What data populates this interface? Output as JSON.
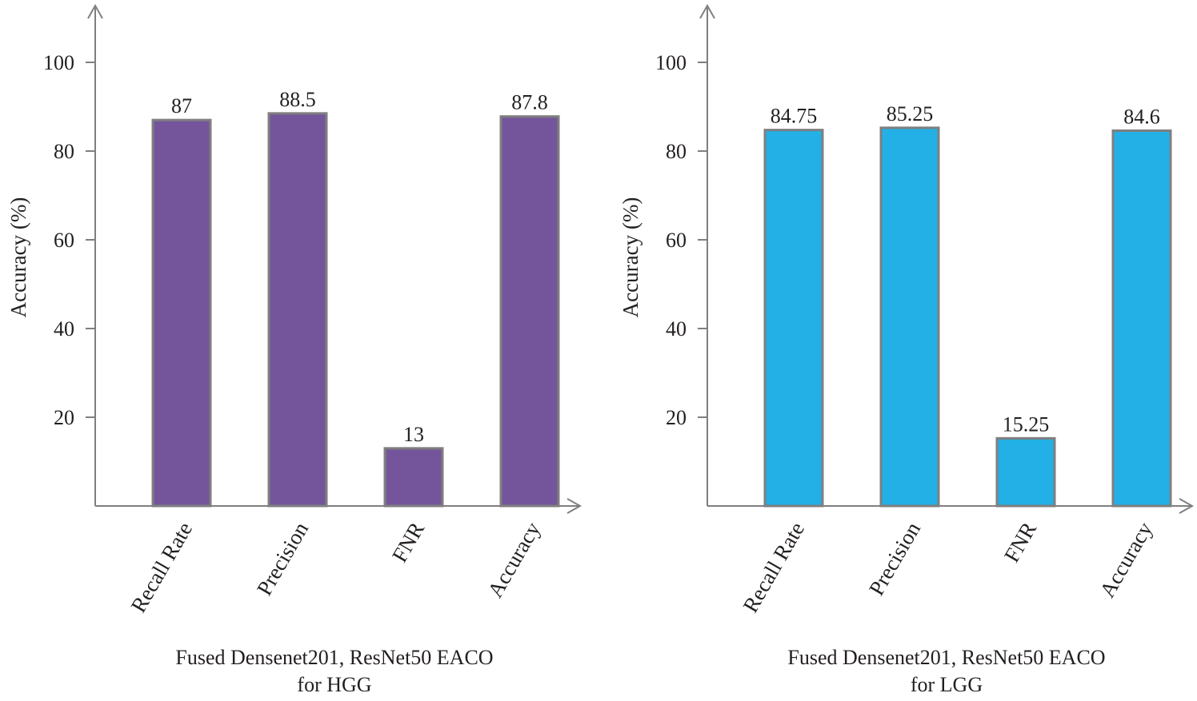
{
  "chart_data": [
    {
      "type": "bar",
      "title_lines": [
        "Fused Densenet201, ResNet50 EACO",
        "for HGG"
      ],
      "ylabel": "Accuracy (%)",
      "xlabel": "",
      "ylim": [
        0,
        110
      ],
      "yticks": [
        20,
        40,
        60,
        80,
        100
      ],
      "categories": [
        "Recall Rate",
        "Precision",
        "FNR",
        "Accuracy"
      ],
      "values": [
        87,
        88.5,
        13,
        87.8
      ],
      "value_labels": [
        "87",
        "88.5",
        "13",
        "87.8"
      ],
      "bar_color": "#74559c",
      "grid": false
    },
    {
      "type": "bar",
      "title_lines": [
        "Fused Densenet201, ResNet50 EACO",
        "for LGG"
      ],
      "ylabel": "Accuracy (%)",
      "xlabel": "",
      "ylim": [
        0,
        110
      ],
      "yticks": [
        20,
        40,
        60,
        80,
        100
      ],
      "categories": [
        "Recall Rate",
        "Precision",
        "FNR",
        "Accuracy"
      ],
      "values": [
        84.75,
        85.25,
        15.25,
        84.6
      ],
      "value_labels": [
        "84.75",
        "85.25",
        "15.25",
        "84.6"
      ],
      "bar_color": "#22b0e6",
      "grid": false
    }
  ]
}
